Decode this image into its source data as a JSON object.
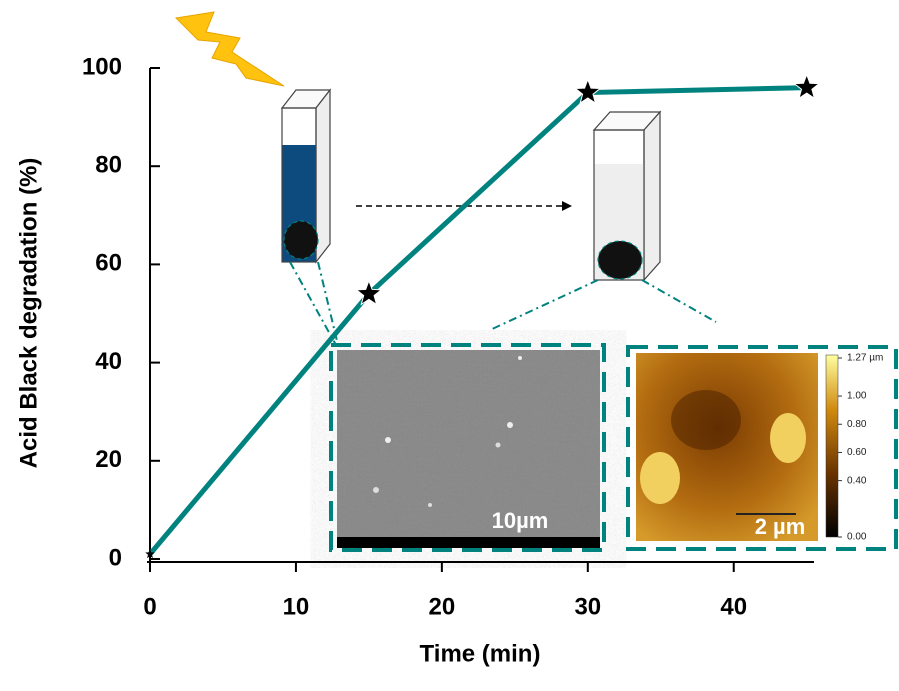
{
  "chart_data": {
    "type": "line",
    "x_label": "Time (min)",
    "y_label": "Acid Black degradation (%)",
    "x": [
      0,
      15,
      30,
      45
    ],
    "series": [
      {
        "color": "#00837f",
        "values": [
          1,
          54,
          95,
          96
        ]
      }
    ],
    "xlim": [
      0,
      45.5
    ],
    "ylim": [
      0,
      100
    ],
    "xticks": [
      0,
      10,
      20,
      30,
      40
    ],
    "yticks": [
      0,
      20,
      40,
      60,
      80,
      100
    ],
    "annotations": {
      "sem_scale": "10µm",
      "afm_scale": "2 µm"
    },
    "afm_colorbar": {
      "lim": [
        0,
        1.27
      ],
      "ticks": [
        {
          "value": 1.27,
          "label": "1.27 µm"
        },
        {
          "value": 1,
          "label": "1.00"
        },
        {
          "value": 0.8,
          "label": "0.80"
        },
        {
          "value": 0.6,
          "label": "0.60"
        },
        {
          "value": 0.4,
          "label": "0.40"
        },
        {
          "value": 0,
          "label": "0.00"
        }
      ]
    }
  }
}
